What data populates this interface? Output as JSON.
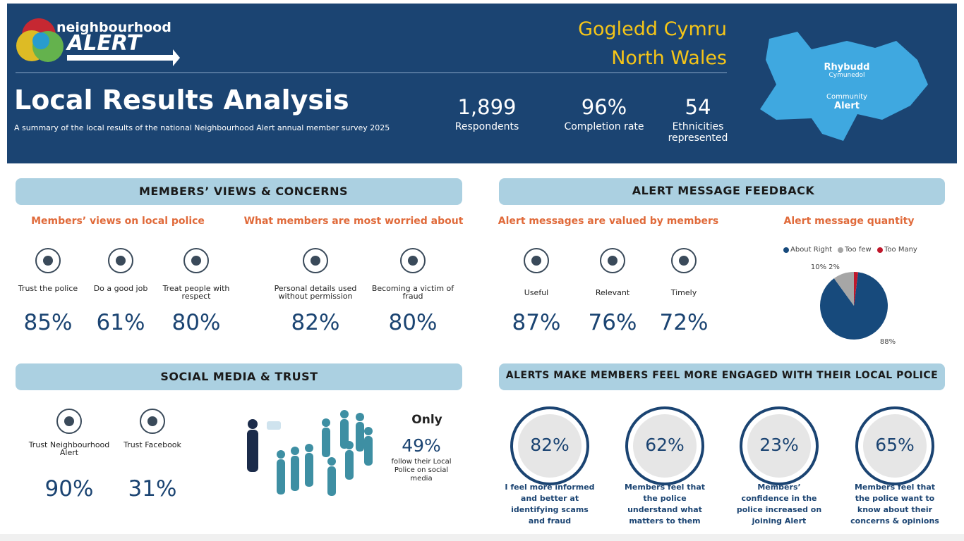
{
  "header": {
    "logo_top": "neighbourhood",
    "logo_bottom": "ALERT",
    "title": "Local Results Analysis",
    "subtitle": "A summary of the local results of the national Neighbourhood Alert annual member survey 2025",
    "region_welsh": "Gogledd Cymru",
    "region_english": "North Wales",
    "stats": [
      {
        "value": "1,899",
        "label": "Respondents"
      },
      {
        "value": "96%",
        "label": "Completion rate"
      },
      {
        "value": "54",
        "label": "Ethnicities represented"
      }
    ],
    "map_badge": [
      "Rhybudd",
      "Cymunedol",
      "Community",
      "Alert"
    ]
  },
  "views": {
    "title": "MEMBERS’ VIEWS & CONCERNS",
    "police": {
      "heading": "Members’ views on local police",
      "items": [
        {
          "label": "Trust the police",
          "value": "85%"
        },
        {
          "label": "Do a good job",
          "value": "61%"
        },
        {
          "label": "Treat people with respect",
          "value": "80%"
        }
      ]
    },
    "worries": {
      "heading": "What members are most worried about",
      "items": [
        {
          "label": "Personal details used without permission",
          "value": "82%"
        },
        {
          "label": "Becoming a victim of fraud",
          "value": "80%"
        }
      ]
    }
  },
  "feedback": {
    "title": "ALERT MESSAGE FEEDBACK",
    "valued": {
      "heading": "Alert messages are valued by members",
      "items": [
        {
          "label": "Useful",
          "value": "87%"
        },
        {
          "label": "Relevant",
          "value": "76%"
        },
        {
          "label": "Timely",
          "value": "72%"
        }
      ]
    }
  },
  "chart_data": {
    "type": "pie",
    "title": "Alert message quantity",
    "categories": [
      "About Right",
      "Too few",
      "Too Many"
    ],
    "values": [
      88,
      10,
      2
    ],
    "value_labels": [
      "88%",
      "10%",
      "2%"
    ],
    "colors": [
      "#174a7c",
      "#a6a6a6",
      "#c0172b"
    ],
    "legend": "top"
  },
  "social": {
    "title": "SOCIAL MEDIA & TRUST",
    "items": [
      {
        "label": "Trust Neighbourhood Alert",
        "value": "90%"
      },
      {
        "label": "Trust Facebook",
        "value": "31%"
      }
    ],
    "follow": {
      "lead": "Only",
      "value": "49%",
      "text": "follow their Local Police on social media"
    }
  },
  "engaged": {
    "title": "ALERTS MAKE MEMBERS FEEL MORE ENGAGED WITH THEIR LOCAL POLICE",
    "items": [
      {
        "value": "82%",
        "text": "I feel more informed and better at identifying scams and fraud"
      },
      {
        "value": "62%",
        "text": "Members feel that the police understand what matters to them"
      },
      {
        "value": "23%",
        "text": "Members’ confidence in the police increased on joining Alert"
      },
      {
        "value": "65%",
        "text": "Members feel that the police want to know about their concerns & opinions"
      }
    ]
  }
}
